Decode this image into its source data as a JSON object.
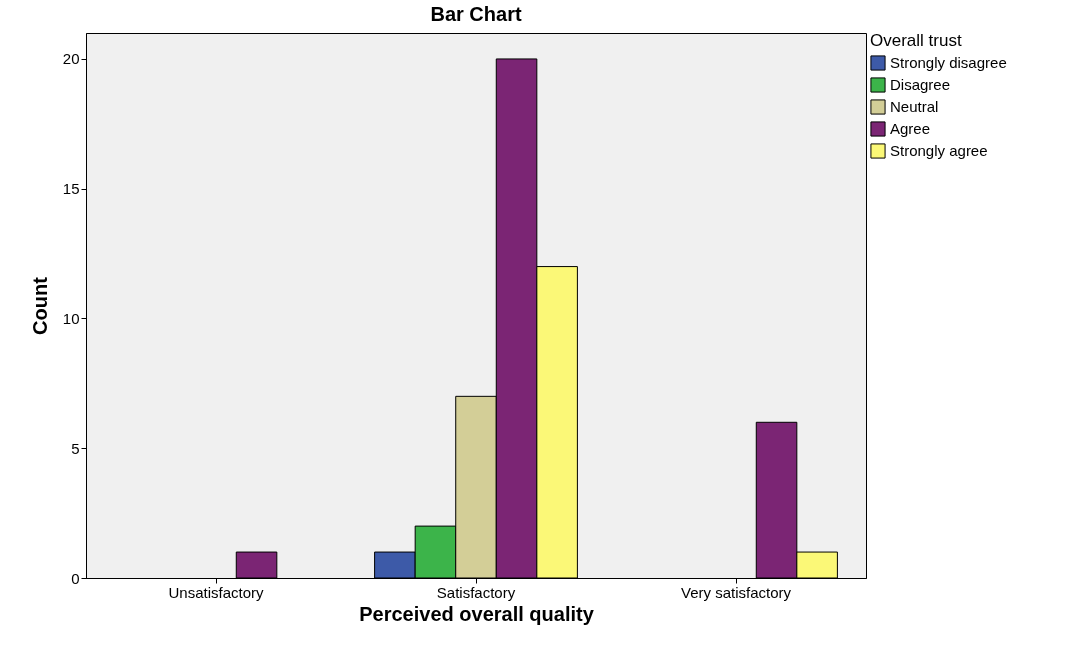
{
  "chart_data": {
    "type": "bar",
    "title": "Bar Chart",
    "xlabel": "Perceived overall quality",
    "ylabel": "Count",
    "legend_title": "Overall trust",
    "categories": [
      "Unsatisfactory",
      "Satisfactory",
      "Very satisfactory"
    ],
    "series": [
      {
        "name": "Strongly disagree",
        "color": "#3d5aa8",
        "values": [
          null,
          1,
          null
        ]
      },
      {
        "name": "Disagree",
        "color": "#3cb44a",
        "values": [
          null,
          2,
          null
        ]
      },
      {
        "name": "Neutral",
        "color": "#d3ce97",
        "values": [
          null,
          7,
          null
        ]
      },
      {
        "name": "Agree",
        "color": "#7b2574",
        "values": [
          1,
          20,
          6
        ]
      },
      {
        "name": "Strongly agree",
        "color": "#fbf877",
        "values": [
          null,
          12,
          1
        ]
      }
    ],
    "ylim": [
      0,
      21
    ],
    "yticks": [
      0,
      5,
      10,
      15,
      20
    ],
    "grid": false,
    "legend": "top right"
  }
}
